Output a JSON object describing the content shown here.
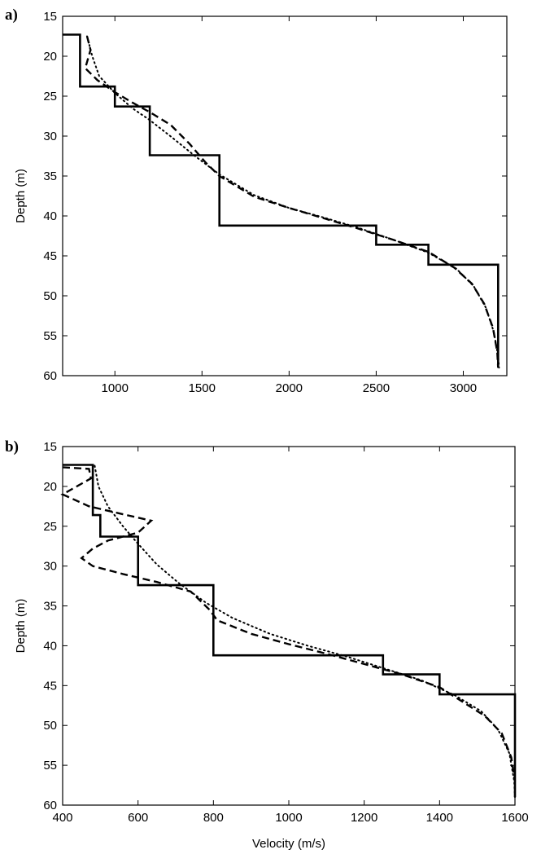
{
  "chart_data": [
    {
      "type": "line",
      "panel_label": "a)",
      "xlabel": "",
      "ylabel": "Depth (m)",
      "xlim": [
        700,
        3250
      ],
      "ylim": [
        15,
        60
      ],
      "y_inverted": true,
      "grid": false,
      "xticks": [
        1000,
        1500,
        2000,
        2500,
        3000
      ],
      "yticks": [
        15,
        20,
        25,
        30,
        35,
        40,
        45,
        50,
        55,
        60
      ],
      "series": [
        {
          "style": "solid",
          "points": [
            [
              700,
              17.3
            ],
            [
              800,
              17.3
            ],
            [
              800,
              23.8
            ],
            [
              1000,
              23.8
            ],
            [
              1000,
              26.3
            ],
            [
              1200,
              26.3
            ],
            [
              1200,
              32.4
            ],
            [
              1600,
              32.4
            ],
            [
              1600,
              41.2
            ],
            [
              2500,
              41.2
            ],
            [
              2500,
              43.6
            ],
            [
              2800,
              43.6
            ],
            [
              2800,
              46.1
            ],
            [
              3200,
              46.1
            ],
            [
              3200,
              59
            ]
          ]
        },
        {
          "style": "dashed",
          "points": [
            [
              840,
              17.5
            ],
            [
              860,
              19.2
            ],
            [
              830,
              21.5
            ],
            [
              900,
              23.0
            ],
            [
              1000,
              24.5
            ],
            [
              1100,
              25.8
            ],
            [
              1200,
              27.0
            ],
            [
              1320,
              28.6
            ],
            [
              1430,
              31.0
            ],
            [
              1520,
              33.3
            ],
            [
              1600,
              35.0
            ],
            [
              1800,
              37.6
            ],
            [
              2000,
              39.0
            ],
            [
              2200,
              40.3
            ],
            [
              2400,
              41.6
            ],
            [
              2600,
              43.0
            ],
            [
              2800,
              44.5
            ],
            [
              2950,
              46.5
            ],
            [
              3050,
              48.5
            ],
            [
              3120,
              51.0
            ],
            [
              3170,
              54.0
            ],
            [
              3195,
              57.0
            ],
            [
              3200,
              59.0
            ]
          ]
        },
        {
          "style": "dotted",
          "points": [
            [
              840,
              17.5
            ],
            [
              870,
              20.0
            ],
            [
              910,
              22.5
            ],
            [
              1000,
              24.6
            ],
            [
              1100,
              26.5
            ],
            [
              1200,
              28.0
            ],
            [
              1330,
              30.2
            ],
            [
              1460,
              32.5
            ],
            [
              1600,
              34.8
            ],
            [
              1800,
              37.4
            ],
            [
              2000,
              39.0
            ],
            [
              2200,
              40.2
            ],
            [
              2400,
              41.5
            ],
            [
              2600,
              43.0
            ],
            [
              2800,
              44.6
            ],
            [
              2960,
              46.6
            ],
            [
              3060,
              48.8
            ],
            [
              3130,
              51.5
            ],
            [
              3175,
              54.5
            ],
            [
              3200,
              57.5
            ],
            [
              3205,
              59.0
            ]
          ]
        }
      ]
    },
    {
      "type": "line",
      "panel_label": "b)",
      "xlabel": "Velocity (m/s)",
      "ylabel": "Depth (m)",
      "xlim": [
        400,
        1600
      ],
      "ylim": [
        15,
        60
      ],
      "y_inverted": true,
      "grid": false,
      "xticks": [
        400,
        600,
        800,
        1000,
        1200,
        1400,
        1600
      ],
      "yticks": [
        15,
        20,
        25,
        30,
        35,
        40,
        45,
        50,
        55,
        60
      ],
      "series": [
        {
          "style": "solid",
          "points": [
            [
              400,
              17.3
            ],
            [
              480,
              17.3
            ],
            [
              480,
              23.6
            ],
            [
              500,
              23.6
            ],
            [
              500,
              26.3
            ],
            [
              600,
              26.3
            ],
            [
              600,
              32.4
            ],
            [
              800,
              32.4
            ],
            [
              800,
              41.2
            ],
            [
              1250,
              41.2
            ],
            [
              1250,
              43.6
            ],
            [
              1400,
              43.6
            ],
            [
              1400,
              46.1
            ],
            [
              1600,
              46.1
            ],
            [
              1600,
              59
            ]
          ]
        },
        {
          "style": "dashed",
          "points": [
            [
              400,
              17.6
            ],
            [
              470,
              17.8
            ],
            [
              475,
              19.0
            ],
            [
              430,
              20.2
            ],
            [
              400,
              21.0
            ],
            [
              470,
              22.5
            ],
            [
              560,
              23.5
            ],
            [
              635,
              24.3
            ],
            [
              600,
              25.8
            ],
            [
              520,
              26.8
            ],
            [
              480,
              27.8
            ],
            [
              450,
              29.0
            ],
            [
              480,
              30.0
            ],
            [
              560,
              31.0
            ],
            [
              650,
              32.0
            ],
            [
              740,
              33.2
            ],
            [
              790,
              35.5
            ],
            [
              810,
              36.8
            ],
            [
              900,
              38.5
            ],
            [
              1000,
              39.8
            ],
            [
              1100,
              41.0
            ],
            [
              1200,
              42.3
            ],
            [
              1300,
              43.6
            ],
            [
              1400,
              45.2
            ],
            [
              1460,
              47.0
            ],
            [
              1520,
              48.8
            ],
            [
              1565,
              51.0
            ],
            [
              1590,
              54.0
            ],
            [
              1600,
              57.0
            ]
          ]
        },
        {
          "style": "dotted",
          "points": [
            [
              485,
              17.4
            ],
            [
              495,
              20.0
            ],
            [
              520,
              22.5
            ],
            [
              560,
              25.0
            ],
            [
              600,
              27.2
            ],
            [
              650,
              29.8
            ],
            [
              710,
              32.2
            ],
            [
              780,
              34.6
            ],
            [
              850,
              36.5
            ],
            [
              950,
              38.5
            ],
            [
              1050,
              40.0
            ],
            [
              1150,
              41.3
            ],
            [
              1250,
              42.8
            ],
            [
              1350,
              44.3
            ],
            [
              1440,
              46.2
            ],
            [
              1510,
              48.2
            ],
            [
              1555,
              50.5
            ],
            [
              1585,
              53.5
            ],
            [
              1598,
              57.0
            ],
            [
              1600,
              59.0
            ]
          ]
        }
      ]
    }
  ]
}
